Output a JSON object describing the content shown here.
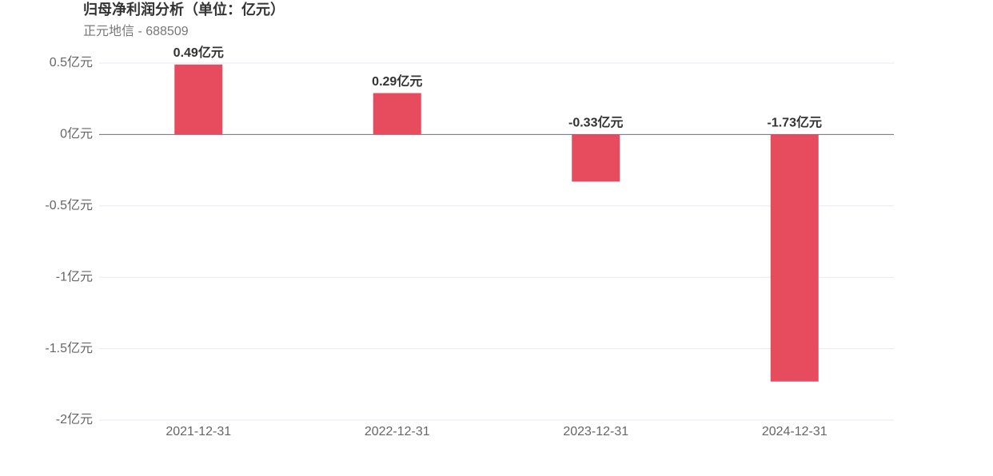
{
  "chart_data": {
    "type": "bar",
    "title": "归母净利润分析（单位：亿元）",
    "subtitle": "正元地信 - 688509",
    "categories": [
      "2021-12-31",
      "2022-12-31",
      "2023-12-31",
      "2024-12-31"
    ],
    "values": [
      0.49,
      0.29,
      -0.33,
      -1.73
    ],
    "value_labels": [
      "0.49亿元",
      "0.29亿元",
      "-0.33亿元",
      "-1.73亿元"
    ],
    "color": "#e64c5e",
    "ylim": [
      -2,
      0.5
    ],
    "yticks": [
      {
        "value": -2,
        "label": "-2亿元"
      },
      {
        "value": -1.5,
        "label": "-1.5亿元"
      },
      {
        "value": -1,
        "label": "-1亿元"
      },
      {
        "value": -0.5,
        "label": "-0.5亿元"
      },
      {
        "value": 0,
        "label": "0亿元"
      },
      {
        "value": 0.5,
        "label": "0.5亿元"
      }
    ],
    "grid": true
  }
}
